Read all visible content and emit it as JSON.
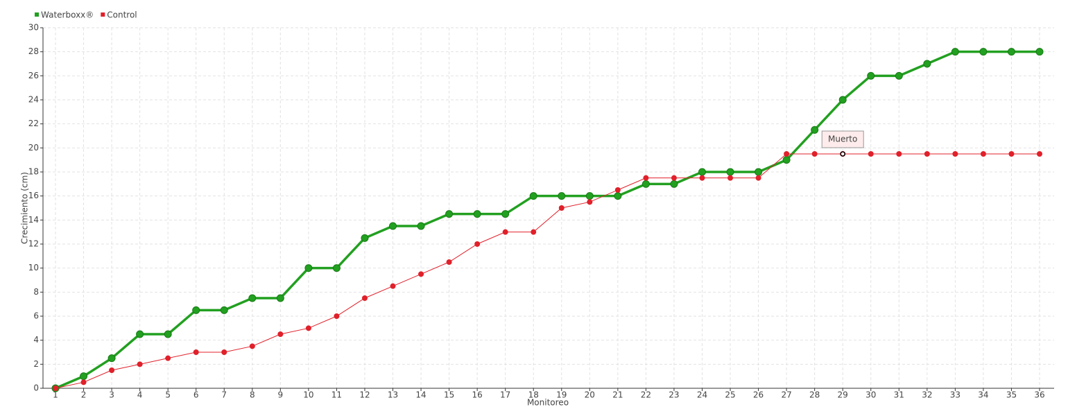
{
  "chart_data": {
    "type": "line",
    "categories": [
      "1",
      "2",
      "3",
      "4",
      "5",
      "6",
      "7",
      "8",
      "9",
      "10",
      "11",
      "12",
      "13",
      "14",
      "15",
      "16",
      "17",
      "18",
      "19",
      "20",
      "21",
      "22",
      "23",
      "24",
      "25",
      "26",
      "27",
      "28",
      "29",
      "30",
      "31",
      "32",
      "33",
      "34",
      "35",
      "36"
    ],
    "series": [
      {
        "name": "Waterboxx®",
        "color": "#22a020",
        "values": [
          0,
          1,
          2.5,
          4.5,
          4.5,
          6.5,
          6.5,
          7.5,
          7.5,
          10,
          10,
          12.5,
          13.5,
          13.5,
          14.5,
          14.5,
          14.5,
          16,
          16,
          16,
          16,
          17,
          17,
          18,
          18,
          18,
          19,
          21.5,
          24,
          26,
          26,
          27,
          28,
          28,
          28,
          28
        ]
      },
      {
        "name": "Control",
        "color": "#e0202a",
        "values": [
          0,
          0.5,
          1.5,
          2,
          2.5,
          3,
          3,
          3.5,
          4.5,
          5,
          6,
          7.5,
          8.5,
          9.5,
          10.5,
          12,
          13,
          13,
          15,
          15.5,
          16.5,
          17.5,
          17.5,
          17.5,
          17.5,
          17.5,
          19.5,
          19.5,
          19.5,
          19.5,
          19.5,
          19.5,
          19.5,
          19.5,
          19.5,
          19.5
        ]
      }
    ],
    "x_label": "Monitoreo",
    "y_label": "Crecimiento (cm)",
    "ylim": [
      0,
      30
    ],
    "yticks": [
      0,
      2,
      4,
      6,
      8,
      10,
      12,
      14,
      16,
      18,
      20,
      22,
      24,
      26,
      28,
      30
    ],
    "grid": true,
    "legend": "top-left",
    "annotation": {
      "text": "Muerto",
      "series": "Control",
      "category": "29"
    }
  }
}
